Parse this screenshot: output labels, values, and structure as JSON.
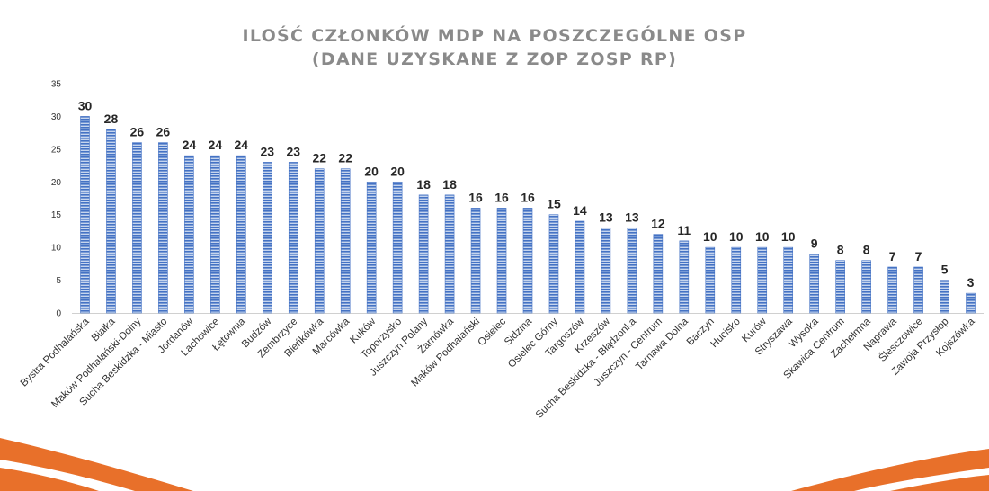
{
  "chart_data": {
    "type": "bar",
    "title": [
      "ILOŚĆ CZŁONKÓW MDP NA POSZCZEGÓLNE OSP",
      "(DANE UZYSKANE Z ZOP ZOSP RP)"
    ],
    "xlabel": "",
    "ylabel": "",
    "ylim": [
      0,
      35
    ],
    "yticks": [
      0,
      5,
      10,
      15,
      20,
      25,
      30,
      35
    ],
    "grid": false,
    "legend": "none",
    "bar_color": "#4472c4",
    "categories": [
      "Bystra Podhalańska",
      "Białka",
      "Maków Podhalański-Dolny",
      "Sucha Beskidzka - Miasto",
      "Jordanów",
      "Lachowice",
      "Łętownia",
      "Budzów",
      "Zembrzyce",
      "Bieńkówka",
      "Marcówka",
      "Kuków",
      "Toporzysko",
      "Juszczyn Polany",
      "Żarnówka",
      "Maków Podhalański",
      "Osielec",
      "Sidzina",
      "Osielec Górny",
      "Targoszów",
      "Krzeszów",
      "Sucha Beskidzka - Błądzonka",
      "Juszczyn - Centrum",
      "Tarnawa Dolna",
      "Baczyn",
      "Hucisko",
      "Kurów",
      "Stryszawa",
      "Wysoka",
      "Skawica Centrum",
      "Zachełmna",
      "Naprawa",
      "Ślesczowice",
      "Zawoja Przysłop",
      "Kojszówka"
    ],
    "values": [
      30,
      28,
      26,
      26,
      24,
      24,
      24,
      23,
      23,
      22,
      22,
      20,
      20,
      18,
      18,
      16,
      16,
      16,
      15,
      14,
      13,
      13,
      12,
      11,
      10,
      10,
      10,
      10,
      9,
      8,
      8,
      7,
      7,
      5,
      3
    ]
  },
  "decor": {
    "accent_color": "#e8702a"
  }
}
